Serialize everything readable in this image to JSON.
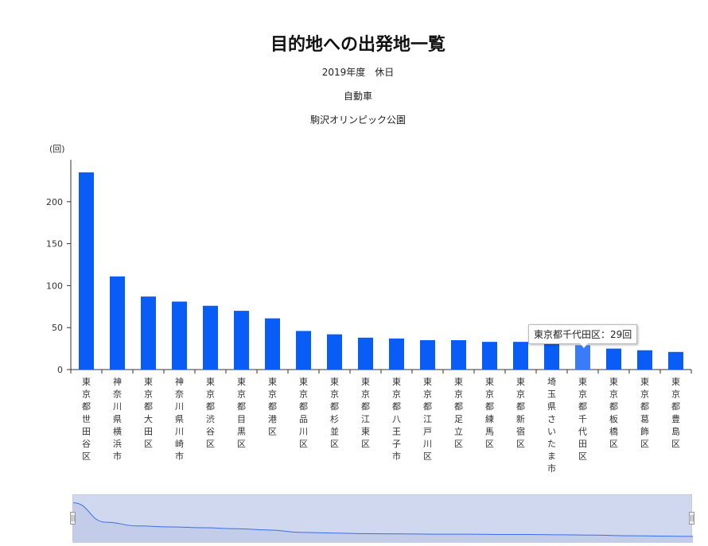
{
  "header": {
    "title": "目的地への出発地一覧",
    "subtitle_year": "2019年度　休日",
    "subtitle_mode": "自動車",
    "subtitle_place": "駒沢オリンピック公園"
  },
  "tooltip": {
    "text": "東京都千代田区：29回"
  },
  "chart_data": {
    "type": "bar",
    "ylabel": "(回)",
    "ylim": [
      0,
      250
    ],
    "yticks": [
      0,
      50,
      100,
      150,
      200
    ],
    "categories": [
      "東京都世田谷区",
      "神奈川県横浜市",
      "東京都大田区",
      "神奈川県川崎市",
      "東京都渋谷区",
      "東京都目黒区",
      "東京都港区",
      "東京都品川区",
      "東京都杉並区",
      "東京都江東区",
      "東京都八王子市",
      "東京都江戸川区",
      "東京都足立区",
      "東京都練馬区",
      "東京都新宿区",
      "埼玉県さいたま市",
      "東京都千代田区",
      "東京都板橋区",
      "東京都葛飾区",
      "東京都豊島区"
    ],
    "values": [
      235,
      111,
      87,
      81,
      76,
      70,
      61,
      46,
      42,
      38,
      37,
      35,
      35,
      33,
      33,
      31,
      29,
      25,
      23,
      21
    ],
    "highlight_index": 16,
    "colors": {
      "bar": "#0a5cf6",
      "highlight": "#3a7cf8",
      "axis": "#333333"
    },
    "grid": false,
    "datazoom": {
      "range": [
        0,
        100
      ]
    }
  }
}
